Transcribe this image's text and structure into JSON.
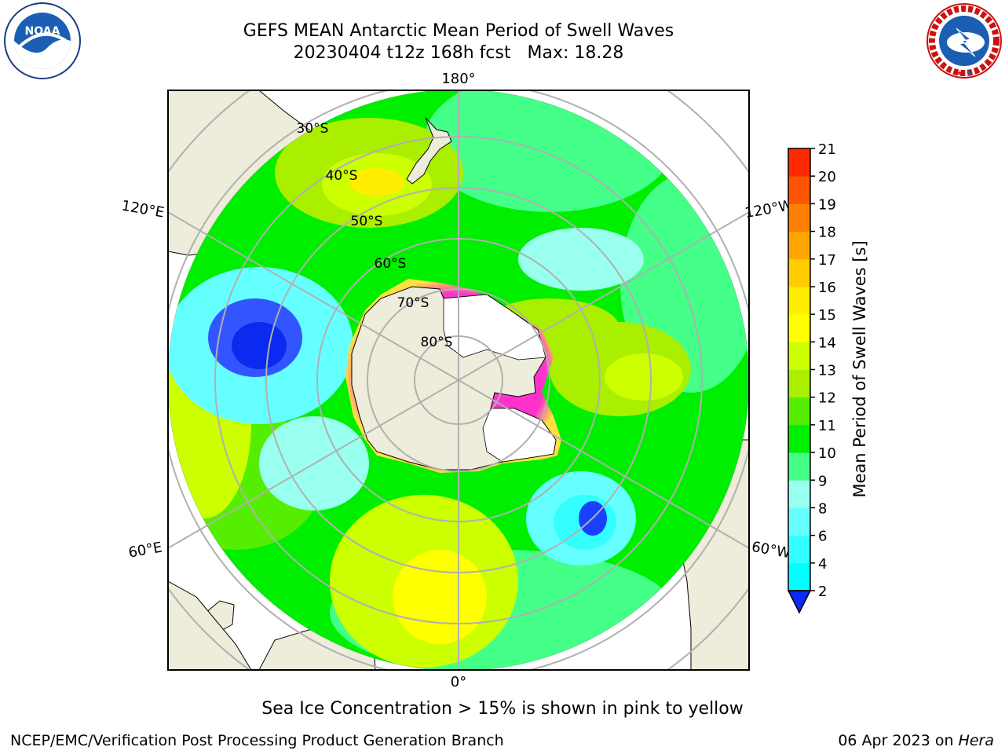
{
  "header": {
    "title_line1": "GEFS MEAN Antarctic Mean Period of Swell Waves",
    "title_line2": "20230404 t12z 168h fcst   Max: 18.28"
  },
  "logos": {
    "left": {
      "icon": "noaa-logo-icon",
      "text": "NOAA"
    },
    "right": {
      "icon": "national-weather-service-logo-icon"
    }
  },
  "map": {
    "projection": "south-polar-stereographic",
    "lon_labels": {
      "top": "180°",
      "bottom": "0°",
      "upper_left": "120°E",
      "upper_right": "120°W",
      "lower_left": "60°E",
      "lower_right": "60°W"
    },
    "lat_labels": [
      "30°S",
      "40°S",
      "50°S",
      "60°S",
      "70°S",
      "80°S"
    ],
    "colors": {
      "land": "#eeecda",
      "ice_shelf": "#ffffff",
      "sea_ice_low": "#ff33cc",
      "sea_ice_high": "#ffe040",
      "gridline": "#b0b0b0"
    }
  },
  "colorbar": {
    "label": "Mean Period of Swell Waves [s]",
    "ticks": [
      "2",
      "4",
      "6",
      "8",
      "9",
      "10",
      "11",
      "12",
      "13",
      "14",
      "15",
      "16",
      "17",
      "18",
      "19",
      "20",
      "21"
    ],
    "colors": [
      "#0a2af0",
      "#00ffff",
      "#33ffff",
      "#66ffff",
      "#99ffee",
      "#44ff88",
      "#00ee00",
      "#55ee00",
      "#aaee00",
      "#ccff00",
      "#ffff00",
      "#ffee00",
      "#ffcc00",
      "#ffa500",
      "#ff8000",
      "#ff5500",
      "#ff2a00",
      "#ff0000"
    ],
    "extend": "min"
  },
  "footer": {
    "ice_note": "Sea Ice Concentration > 15% is shown in pink to yellow",
    "credit_left": "NCEP/EMC/Verification Post Processing Product Generation Branch",
    "credit_right_date": "06 Apr 2023 on ",
    "credit_right_host": "Hera"
  }
}
